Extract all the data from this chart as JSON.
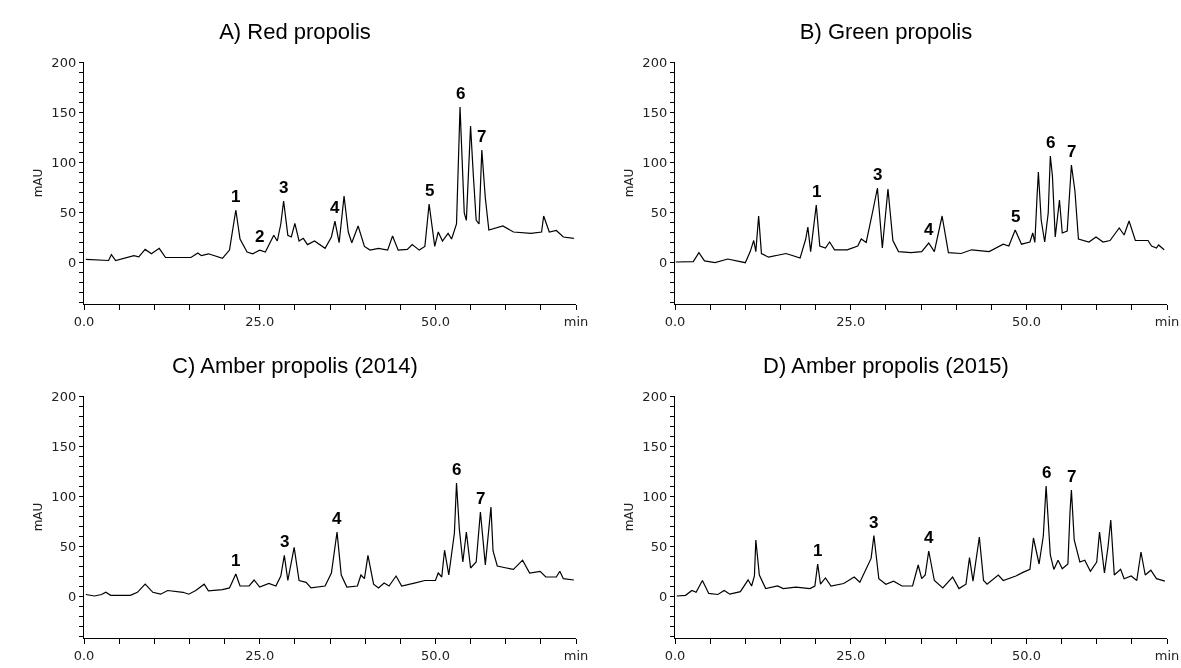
{
  "chart_data": [
    {
      "type": "line",
      "title": "A) Red propolis",
      "ylabel": "mAU",
      "color": "#000000",
      "x": [
        0.25,
        3.5,
        3.9,
        4.5,
        7.1,
        7.8,
        8.7,
        9.6,
        10.7,
        11.6,
        15.2,
        16.2,
        16.7,
        17.7,
        19.7,
        20.7,
        21.6,
        22.2,
        23.2,
        24,
        25,
        25.8,
        27,
        27.5,
        28,
        28.4,
        29,
        29.5,
        30,
        30.6,
        31.2,
        31.8,
        32.8,
        34.3,
        35.2,
        35.7,
        36.3,
        37,
        37.6,
        38.1,
        39,
        39.9,
        40.7,
        41.9,
        43.2,
        43.9,
        44.7,
        46,
        46.7,
        47.7,
        48.5,
        49.1,
        49.9,
        50.4,
        51,
        51.8,
        52.3,
        53,
        53.5,
        54.1,
        54.4,
        55,
        55.4,
        55.8,
        56.2,
        56.6,
        57.1,
        57.6,
        59.6,
        61.1,
        63.6,
        65.1,
        65.4,
        66.2,
        67.2,
        68.2,
        69.7
      ],
      "values": [
        2.6,
        1.5,
        7.4,
        1.5,
        6.3,
        5.2,
        12.6,
        8.2,
        13.7,
        4.5,
        4.5,
        8.9,
        6.3,
        8.2,
        3.7,
        11.9,
        52,
        23,
        10,
        8.2,
        11.9,
        10,
        26.7,
        21,
        38,
        61,
        26.7,
        25,
        38.6,
        21,
        23.7,
        17.4,
        21,
        13.7,
        25,
        40.8,
        19.3,
        66,
        30,
        19.3,
        36,
        15.6,
        11.9,
        13.7,
        11.9,
        26,
        11.9,
        12.6,
        17.4,
        11.9,
        15.6,
        58,
        15.6,
        30,
        21,
        28.6,
        23,
        38,
        155,
        49,
        41.6,
        136,
        86,
        41.6,
        38,
        112,
        64,
        32,
        36,
        30,
        28.6,
        30,
        46,
        30,
        31.5,
        25,
        23.7
      ],
      "xlim": [
        0,
        70
      ],
      "xticks": [
        {
          "value": 0,
          "label": "0.0"
        },
        {
          "value": 5,
          "label": null
        },
        {
          "value": 10,
          "label": null
        },
        {
          "value": 15,
          "label": null
        },
        {
          "value": 20,
          "label": null
        },
        {
          "value": 25,
          "label": "25.0"
        },
        {
          "value": 30,
          "label": null
        },
        {
          "value": 35,
          "label": null
        },
        {
          "value": 40,
          "label": null
        },
        {
          "value": 45,
          "label": null
        },
        {
          "value": 50,
          "label": "50.0"
        },
        {
          "value": 55,
          "label": null
        },
        {
          "value": 60,
          "label": null
        },
        {
          "value": 65,
          "label": null
        },
        {
          "value": 70,
          "label": "min"
        }
      ],
      "ylim": [
        -42,
        200
      ],
      "yticks": [
        {
          "value": -40,
          "label": null
        },
        {
          "value": -30,
          "label": null
        },
        {
          "value": -20,
          "label": null
        },
        {
          "value": -10,
          "label": null
        },
        0,
        {
          "value": 10,
          "label": null
        },
        {
          "value": 20,
          "label": null
        },
        {
          "value": 30,
          "label": null
        },
        {
          "value": 40,
          "label": null
        },
        50,
        {
          "value": 60,
          "label": null
        },
        {
          "value": 70,
          "label": null
        },
        {
          "value": 80,
          "label": null
        },
        {
          "value": 90,
          "label": null
        },
        100,
        {
          "value": 110,
          "label": null
        },
        {
          "value": 120,
          "label": null
        },
        {
          "value": 130,
          "label": null
        },
        {
          "value": 140,
          "label": null
        },
        150,
        {
          "value": 160,
          "label": null
        },
        {
          "value": 170,
          "label": null
        },
        {
          "value": 180,
          "label": null
        },
        {
          "value": 190,
          "label": null
        },
        200
      ],
      "annotations": [
        {
          "text": "1",
          "x": 21.6,
          "y": 52
        },
        {
          "text": "2",
          "x": 25,
          "y": 11.9
        },
        {
          "text": "3",
          "x": 28.4,
          "y": 61
        },
        {
          "text": "4",
          "x": 35.7,
          "y": 40.8
        },
        {
          "text": "5",
          "x": 49.1,
          "y": 58
        },
        {
          "text": "6",
          "x": 53.5,
          "y": 155
        },
        {
          "text": "7",
          "x": 56.6,
          "y": 112
        }
      ]
    },
    {
      "type": "line",
      "title": "B) Green propolis",
      "ylabel": "mAU",
      "color": "#000000",
      "x": [
        0.1,
        2.6,
        3.4,
        4.2,
        5.7,
        7.5,
        10,
        10.7,
        11.2,
        11.5,
        11.9,
        12.3,
        13.3,
        15.8,
        17.8,
        18.6,
        18.9,
        19.3,
        20.1,
        20.6,
        21.4,
        22,
        22.7,
        24.5,
        26,
        26.5,
        27.2,
        28.2,
        28.8,
        29.5,
        30.3,
        31,
        31.8,
        33.6,
        35.1,
        36.1,
        36.9,
        38,
        38.9,
        40.7,
        42.2,
        44.7,
        46.7,
        47.5,
        48.4,
        49.3,
        50.5,
        50.9,
        51.2,
        51.5,
        51.7,
        52.1,
        52.6,
        53.1,
        53.4,
        53.7,
        54.1,
        54.7,
        55.1,
        55.8,
        56.4,
        56.9,
        57.4,
        58.9,
        59.9,
        60.9,
        61.9,
        63.2,
        63.9,
        64.6,
        65.5,
        67.3,
        67.8,
        68.5,
        68.8,
        69.6
      ],
      "values": [
        0,
        0.4,
        9.3,
        1.1,
        -0.7,
        3,
        -0.7,
        10.4,
        21.5,
        10.4,
        46,
        8.5,
        4.8,
        8.5,
        4,
        23,
        35,
        10.4,
        57,
        16,
        14,
        20,
        12.2,
        12.2,
        16,
        23,
        19.6,
        53,
        74,
        14,
        73,
        21.5,
        10.4,
        9.3,
        10.4,
        19,
        10.4,
        46,
        9.3,
        8.5,
        12.2,
        10.4,
        17.8,
        16,
        32,
        17.8,
        20,
        29,
        19.6,
        64,
        90,
        42,
        20,
        49,
        106,
        86,
        25,
        62,
        29,
        31,
        97,
        71,
        23,
        20,
        25,
        20,
        21.5,
        34,
        27,
        41,
        21.5,
        21.5,
        16,
        14,
        17,
        12.2
      ],
      "xlim": [
        0,
        70
      ],
      "xticks": [
        {
          "value": 0,
          "label": "0.0"
        },
        {
          "value": 5,
          "label": null
        },
        {
          "value": 10,
          "label": null
        },
        {
          "value": 15,
          "label": null
        },
        {
          "value": 20,
          "label": null
        },
        {
          "value": 25,
          "label": "25.0"
        },
        {
          "value": 30,
          "label": null
        },
        {
          "value": 35,
          "label": null
        },
        {
          "value": 40,
          "label": null
        },
        {
          "value": 45,
          "label": null
        },
        {
          "value": 50,
          "label": "50.0"
        },
        {
          "value": 55,
          "label": null
        },
        {
          "value": 60,
          "label": null
        },
        {
          "value": 65,
          "label": null
        },
        {
          "value": 70,
          "label": "min"
        }
      ],
      "ylim": [
        -42,
        200
      ],
      "yticks": [
        {
          "value": -40,
          "label": null
        },
        {
          "value": -30,
          "label": null
        },
        {
          "value": -20,
          "label": null
        },
        {
          "value": -10,
          "label": null
        },
        0,
        {
          "value": 10,
          "label": null
        },
        {
          "value": 20,
          "label": null
        },
        {
          "value": 30,
          "label": null
        },
        {
          "value": 40,
          "label": null
        },
        50,
        {
          "value": 60,
          "label": null
        },
        {
          "value": 70,
          "label": null
        },
        {
          "value": 80,
          "label": null
        },
        {
          "value": 90,
          "label": null
        },
        100,
        {
          "value": 110,
          "label": null
        },
        {
          "value": 120,
          "label": null
        },
        {
          "value": 130,
          "label": null
        },
        {
          "value": 140,
          "label": null
        },
        150,
        {
          "value": 160,
          "label": null
        },
        {
          "value": 170,
          "label": null
        },
        {
          "value": 180,
          "label": null
        },
        {
          "value": 190,
          "label": null
        },
        200
      ],
      "annotations": [
        {
          "text": "1",
          "x": 20.1,
          "y": 57
        },
        {
          "text": "3",
          "x": 28.8,
          "y": 74
        },
        {
          "text": "4",
          "x": 36.1,
          "y": 19
        },
        {
          "text": "5",
          "x": 48.4,
          "y": 32
        },
        {
          "text": "6",
          "x": 53.4,
          "y": 106
        },
        {
          "text": "7",
          "x": 56.4,
          "y": 97
        }
      ]
    },
    {
      "type": "line",
      "title": "C) Amber propolis (2014)",
      "ylabel": "mAU",
      "color": "#000000",
      "x": [
        0.25,
        1.5,
        2.5,
        3.1,
        3.8,
        6.6,
        7.6,
        8.7,
        9.8,
        10.9,
        11.9,
        14.1,
        14.9,
        15.9,
        17.1,
        17.7,
        19.7,
        20.7,
        21.6,
        22.2,
        23.5,
        24.2,
        25,
        26.3,
        27.3,
        28,
        28.5,
        29,
        29.9,
        30.6,
        31.6,
        32.3,
        34.3,
        35.2,
        36,
        36.6,
        37.4,
        38.9,
        39.4,
        39.9,
        40.4,
        41.2,
        41.9,
        42.7,
        43.4,
        44.4,
        45.2,
        47,
        48.5,
        50,
        50.4,
        50.9,
        51.3,
        51.9,
        52.7,
        53,
        53.4,
        53.9,
        54.4,
        55,
        55.8,
        56.4,
        57.1,
        57.9,
        58.2,
        58.8,
        60.1,
        61.1,
        62.4,
        63.4,
        64.9,
        65.7,
        67.2,
        67.7,
        68.2,
        69.7
      ],
      "values": [
        1.5,
        0,
        1.5,
        3.7,
        0.7,
        0.7,
        3.7,
        11.8,
        3.7,
        1.8,
        5.5,
        3.7,
        1.8,
        5.5,
        11.8,
        5.2,
        6.3,
        8.1,
        22,
        10,
        10,
        16,
        8.9,
        12.5,
        10,
        20,
        40.6,
        15.5,
        48.7,
        15.5,
        13.7,
        8.1,
        10,
        23,
        64,
        21,
        8.9,
        10,
        21,
        17.3,
        40.6,
        11.8,
        8.1,
        12.9,
        10,
        20,
        10,
        12.9,
        15.5,
        15.5,
        23,
        19,
        45.8,
        21,
        63,
        113,
        67,
        34,
        64,
        28,
        34,
        84,
        31,
        89,
        45,
        30,
        28,
        26.6,
        35.8,
        23,
        24.7,
        19,
        19,
        24.7,
        17.3,
        16
      ],
      "xlim": [
        0,
        70
      ],
      "xticks": [
        {
          "value": 0,
          "label": "0.0"
        },
        {
          "value": 5,
          "label": null
        },
        {
          "value": 10,
          "label": null
        },
        {
          "value": 15,
          "label": null
        },
        {
          "value": 20,
          "label": null
        },
        {
          "value": 25,
          "label": "25.0"
        },
        {
          "value": 30,
          "label": null
        },
        {
          "value": 35,
          "label": null
        },
        {
          "value": 40,
          "label": null
        },
        {
          "value": 45,
          "label": null
        },
        {
          "value": 50,
          "label": "50.0"
        },
        {
          "value": 55,
          "label": null
        },
        {
          "value": 60,
          "label": null
        },
        {
          "value": 65,
          "label": null
        },
        {
          "value": 70,
          "label": "min"
        }
      ],
      "ylim": [
        -42,
        200
      ],
      "yticks": [
        {
          "value": -40,
          "label": null
        },
        {
          "value": -30,
          "label": null
        },
        {
          "value": -20,
          "label": null
        },
        {
          "value": -10,
          "label": null
        },
        0,
        {
          "value": 10,
          "label": null
        },
        {
          "value": 20,
          "label": null
        },
        {
          "value": 30,
          "label": null
        },
        {
          "value": 40,
          "label": null
        },
        50,
        {
          "value": 60,
          "label": null
        },
        {
          "value": 70,
          "label": null
        },
        {
          "value": 80,
          "label": null
        },
        {
          "value": 90,
          "label": null
        },
        100,
        {
          "value": 110,
          "label": null
        },
        {
          "value": 120,
          "label": null
        },
        {
          "value": 130,
          "label": null
        },
        {
          "value": 140,
          "label": null
        },
        150,
        {
          "value": 160,
          "label": null
        },
        {
          "value": 170,
          "label": null
        },
        {
          "value": 180,
          "label": null
        },
        {
          "value": 190,
          "label": null
        },
        200
      ],
      "annotations": [
        {
          "text": "1",
          "x": 21.6,
          "y": 22
        },
        {
          "text": "3",
          "x": 28.5,
          "y": 40.6
        },
        {
          "text": "4",
          "x": 36,
          "y": 64
        },
        {
          "text": "6",
          "x": 53,
          "y": 113
        },
        {
          "text": "7",
          "x": 56.4,
          "y": 84
        }
      ]
    },
    {
      "type": "line",
      "title": "D) Amber propolis (2015)",
      "ylabel": "mAU",
      "color": "#000000",
      "x": [
        0.25,
        1.5,
        2.4,
        3,
        3.9,
        4.8,
        6.1,
        7,
        7.8,
        9.3,
        10.4,
        10.9,
        11.3,
        11.5,
        12,
        12.9,
        14.6,
        15.4,
        17.2,
        19.2,
        19.9,
        20.3,
        20.7,
        21.4,
        22.2,
        24,
        25.5,
        26.3,
        27.9,
        28.3,
        29,
        30,
        31.1,
        32.3,
        33.8,
        34.6,
        35.1,
        35.6,
        36.1,
        36.9,
        38.1,
        39.5,
        40.4,
        41.4,
        41.9,
        42.4,
        43.3,
        43.9,
        44.4,
        46,
        46.7,
        48.5,
        49.5,
        50.5,
        51,
        51.8,
        52.4,
        52.8,
        53.4,
        53.9,
        54.5,
        55.1,
        55.9,
        56.2,
        56.4,
        56.8,
        57.6,
        58.3,
        59.1,
        60,
        60.4,
        61.1,
        61.6,
        62,
        62.5,
        63.4,
        63.9,
        64.9,
        65.7,
        66.3,
        66.9,
        67.7,
        68.5,
        69.7
      ],
      "values": [
        0,
        0.7,
        5.5,
        3.7,
        15.5,
        2.6,
        1.5,
        5.5,
        1.8,
        4.4,
        16.2,
        10,
        20,
        56,
        21,
        7.4,
        10,
        7.4,
        8.9,
        7.4,
        10,
        32,
        11.8,
        18,
        10,
        12.5,
        19,
        13.7,
        37.6,
        60.5,
        17.3,
        11.8,
        14.8,
        10,
        10,
        31,
        17.3,
        21,
        45,
        15.5,
        8.1,
        19,
        7.4,
        11.8,
        38.4,
        14.8,
        59,
        15.5,
        11.8,
        21,
        15.5,
        20,
        23.6,
        26.6,
        58,
        32,
        60,
        110,
        41,
        26.6,
        35.8,
        27.3,
        32,
        84,
        106,
        56,
        34,
        35.8,
        24.7,
        34,
        64,
        23,
        48.7,
        76,
        21,
        26.6,
        17.3,
        20,
        15.5,
        44,
        21,
        25.8,
        17.3,
        14.8
      ],
      "xlim": [
        0,
        70
      ],
      "xticks": [
        {
          "value": 0,
          "label": "0.0"
        },
        {
          "value": 5,
          "label": null
        },
        {
          "value": 10,
          "label": null
        },
        {
          "value": 15,
          "label": null
        },
        {
          "value": 20,
          "label": null
        },
        {
          "value": 25,
          "label": "25.0"
        },
        {
          "value": 30,
          "label": null
        },
        {
          "value": 35,
          "label": null
        },
        {
          "value": 40,
          "label": null
        },
        {
          "value": 45,
          "label": null
        },
        {
          "value": 50,
          "label": "50.0"
        },
        {
          "value": 55,
          "label": null
        },
        {
          "value": 60,
          "label": null
        },
        {
          "value": 65,
          "label": null
        },
        {
          "value": 70,
          "label": "min"
        }
      ],
      "ylim": [
        -42,
        200
      ],
      "yticks": [
        {
          "value": -40,
          "label": null
        },
        {
          "value": -30,
          "label": null
        },
        {
          "value": -20,
          "label": null
        },
        {
          "value": -10,
          "label": null
        },
        0,
        {
          "value": 10,
          "label": null
        },
        {
          "value": 20,
          "label": null
        },
        {
          "value": 30,
          "label": null
        },
        {
          "value": 40,
          "label": null
        },
        50,
        {
          "value": 60,
          "label": null
        },
        {
          "value": 70,
          "label": null
        },
        {
          "value": 80,
          "label": null
        },
        {
          "value": 90,
          "label": null
        },
        100,
        {
          "value": 110,
          "label": null
        },
        {
          "value": 120,
          "label": null
        },
        {
          "value": 130,
          "label": null
        },
        {
          "value": 140,
          "label": null
        },
        150,
        {
          "value": 160,
          "label": null
        },
        {
          "value": 170,
          "label": null
        },
        {
          "value": 180,
          "label": null
        },
        {
          "value": 190,
          "label": null
        },
        200
      ],
      "annotations": [
        {
          "text": "1",
          "x": 20.3,
          "y": 32
        },
        {
          "text": "3",
          "x": 28.3,
          "y": 60.5
        },
        {
          "text": "4",
          "x": 36.1,
          "y": 45
        },
        {
          "text": "6",
          "x": 52.8,
          "y": 110
        },
        {
          "text": "7",
          "x": 56.4,
          "y": 106
        }
      ]
    }
  ]
}
